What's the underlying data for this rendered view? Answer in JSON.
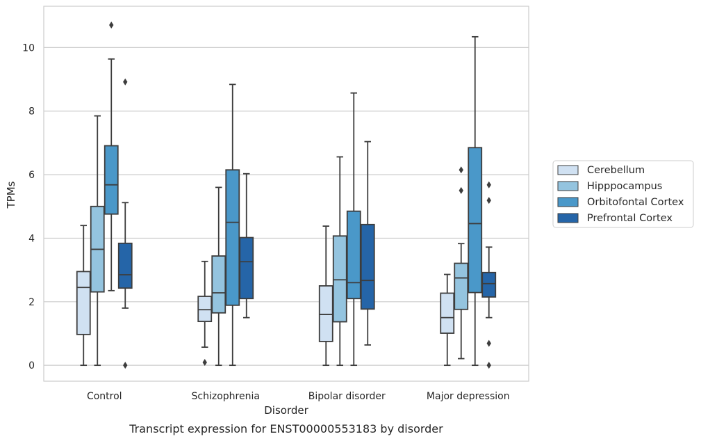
{
  "chart_data": {
    "type": "box",
    "caption": "Transcript expression for ENST00000553183 by disorder",
    "xlabel": "Disorder",
    "ylabel": "TPMs",
    "ylim": [
      -0.5,
      11.3
    ],
    "yticks": [
      0,
      2,
      4,
      6,
      8,
      10
    ],
    "grid": "horizontal",
    "legend_position": "right",
    "categories": [
      "Control",
      "Schizophrenia",
      "Bipolar disorder",
      "Major depression"
    ],
    "series": [
      {
        "name": "Cerebellum",
        "color": "#d0e1f2",
        "boxes": [
          {
            "whisker_low": 0.0,
            "q1": 0.97,
            "median": 2.45,
            "q3": 2.95,
            "whisker_high": 4.4,
            "outliers": []
          },
          {
            "whisker_low": 0.57,
            "q1": 1.38,
            "median": 1.75,
            "q3": 2.17,
            "whisker_high": 3.27,
            "outliers": [
              0.09
            ]
          },
          {
            "whisker_low": 0.0,
            "q1": 0.75,
            "median": 1.6,
            "q3": 2.5,
            "whisker_high": 4.38,
            "outliers": []
          },
          {
            "whisker_low": 0.0,
            "q1": 1.01,
            "median": 1.5,
            "q3": 2.27,
            "whisker_high": 2.86,
            "outliers": []
          }
        ]
      },
      {
        "name": "Hipppocampus",
        "color": "#94c4df",
        "boxes": [
          {
            "whisker_low": 0.0,
            "q1": 2.31,
            "median": 3.65,
            "q3": 5.0,
            "whisker_high": 7.85,
            "outliers": []
          },
          {
            "whisker_low": 0.0,
            "q1": 1.65,
            "median": 2.28,
            "q3": 3.44,
            "whisker_high": 5.6,
            "outliers": []
          },
          {
            "whisker_low": 0.0,
            "q1": 1.37,
            "median": 2.69,
            "q3": 4.07,
            "whisker_high": 6.56,
            "outliers": []
          },
          {
            "whisker_low": 0.21,
            "q1": 1.76,
            "median": 2.75,
            "q3": 3.21,
            "whisker_high": 3.83,
            "outliers": [
              5.5,
              6.15
            ]
          }
        ]
      },
      {
        "name": "Orbitofontal Cortex",
        "color": "#4a98c9",
        "boxes": [
          {
            "whisker_low": 2.35,
            "q1": 4.76,
            "median": 5.68,
            "q3": 6.91,
            "whisker_high": 9.64,
            "outliers": [
              10.71
            ]
          },
          {
            "whisker_low": 0.0,
            "q1": 1.89,
            "median": 4.5,
            "q3": 6.15,
            "whisker_high": 8.84,
            "outliers": []
          },
          {
            "whisker_low": 0.0,
            "q1": 2.1,
            "median": 2.6,
            "q3": 4.85,
            "whisker_high": 8.57,
            "outliers": []
          },
          {
            "whisker_low": 0.0,
            "q1": 2.29,
            "median": 4.46,
            "q3": 6.85,
            "whisker_high": 10.34,
            "outliers": []
          }
        ]
      },
      {
        "name": "Prefrontal Cortex",
        "color": "#2565a8",
        "boxes": [
          {
            "whisker_low": 1.8,
            "q1": 2.43,
            "median": 2.85,
            "q3": 3.84,
            "whisker_high": 5.12,
            "outliers": [
              0.0,
              8.92
            ]
          },
          {
            "whisker_low": 1.5,
            "q1": 2.1,
            "median": 3.26,
            "q3": 4.02,
            "whisker_high": 6.03,
            "outliers": []
          },
          {
            "whisker_low": 0.64,
            "q1": 1.77,
            "median": 2.67,
            "q3": 4.43,
            "whisker_high": 7.04,
            "outliers": []
          },
          {
            "whisker_low": 1.5,
            "q1": 2.15,
            "median": 2.57,
            "q3": 2.92,
            "whisker_high": 3.72,
            "outliers": [
              0.0,
              0.69,
              5.19,
              5.68
            ]
          }
        ]
      }
    ]
  }
}
